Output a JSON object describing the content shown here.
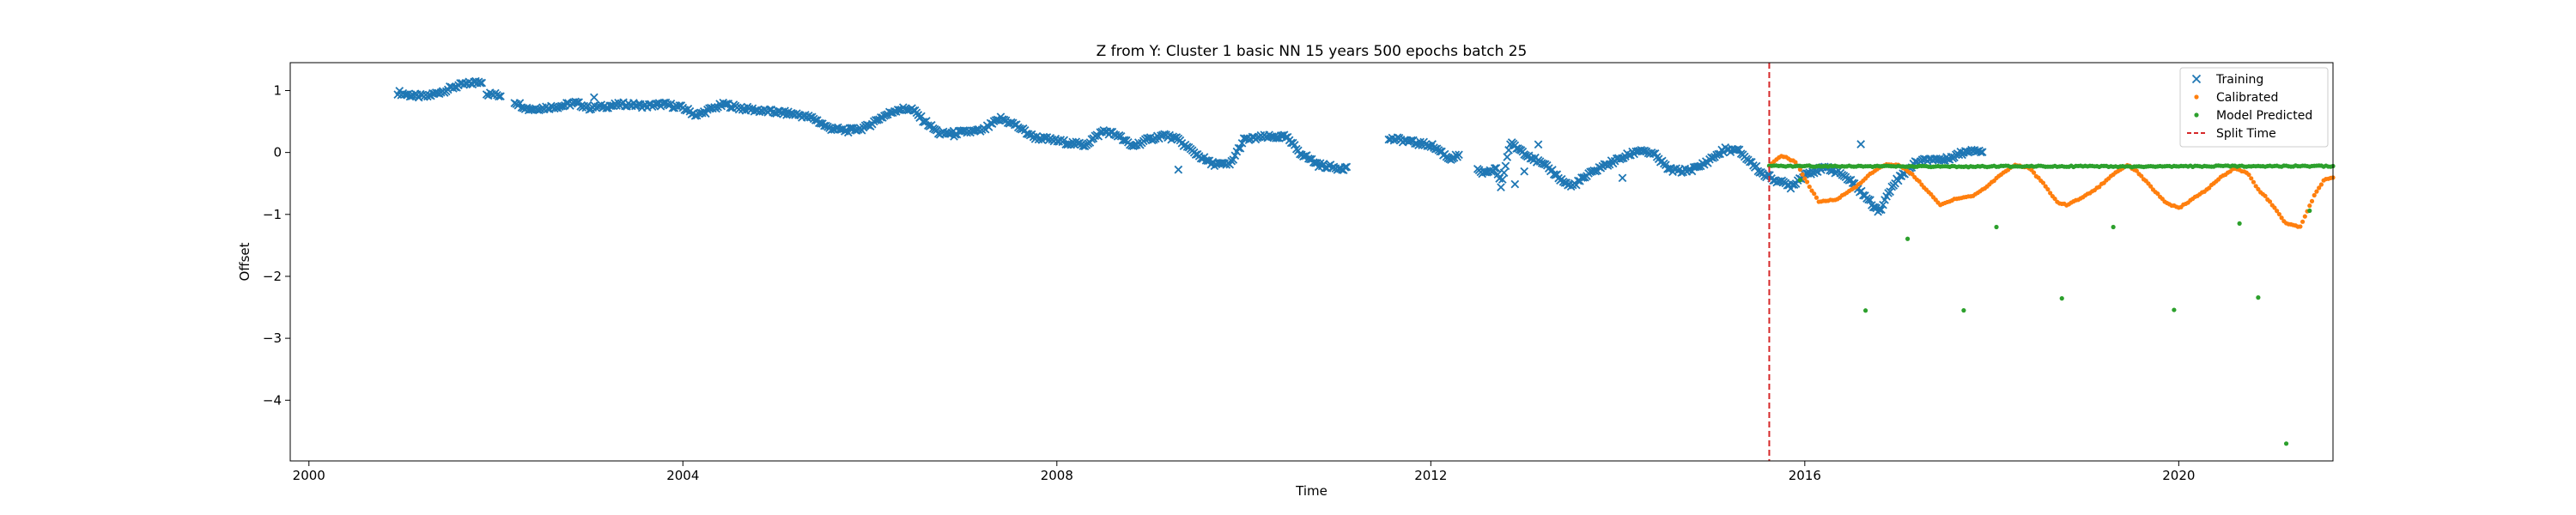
{
  "chart_data": {
    "type": "scatter",
    "title": "Z from Y: Cluster 1 basic NN 15 years 500 epochs batch 25",
    "xlabel": "Time",
    "ylabel": "Offset",
    "xlim": [
      1999.8,
      2021.65
    ],
    "ylim": [
      -4.98,
      1.45
    ],
    "xticks": [
      2000,
      2004,
      2008,
      2012,
      2016,
      2020
    ],
    "yticks": [
      1,
      0,
      -1,
      -2,
      -3,
      -4
    ],
    "ytick_labels": [
      "1",
      "0",
      "−1",
      "−2",
      "−3",
      "−4"
    ],
    "grid": false,
    "legend_position": "top-right",
    "colors": {
      "training": "#1f77b4",
      "calibrated": "#ff7f0e",
      "model_predicted": "#2ca02c",
      "split": "#d62728"
    },
    "split_time": 2015.62,
    "series": [
      {
        "name": "Training",
        "marker": "x",
        "segments": [
          [
            [
              2000.95,
              0.97
            ],
            [
              2001.1,
              0.92
            ],
            [
              2001.25,
              0.9
            ],
            [
              2001.45,
              1.0
            ],
            [
              2001.6,
              1.08
            ],
            [
              2001.75,
              1.12
            ],
            [
              2001.85,
              1.15
            ]
          ],
          [
            [
              2001.9,
              0.95
            ],
            [
              2002.05,
              0.92
            ]
          ],
          [
            [
              2002.2,
              0.82
            ],
            [
              2002.35,
              0.7
            ],
            [
              2002.5,
              0.72
            ],
            [
              2002.7,
              0.75
            ],
            [
              2002.85,
              0.8
            ],
            [
              2003.0,
              0.72
            ],
            [
              2003.2,
              0.75
            ],
            [
              2003.4,
              0.78
            ],
            [
              2003.6,
              0.75
            ],
            [
              2003.8,
              0.78
            ],
            [
              2004.0,
              0.72
            ],
            [
              2004.15,
              0.6
            ],
            [
              2004.3,
              0.7
            ],
            [
              2004.45,
              0.78
            ],
            [
              2004.6,
              0.72
            ],
            [
              2004.8,
              0.68
            ],
            [
              2005.0,
              0.65
            ],
            [
              2005.2,
              0.62
            ],
            [
              2005.4,
              0.55
            ],
            [
              2005.55,
              0.4
            ],
            [
              2005.75,
              0.35
            ],
            [
              2005.95,
              0.4
            ],
            [
              2006.1,
              0.55
            ],
            [
              2006.3,
              0.7
            ],
            [
              2006.45,
              0.7
            ],
            [
              2006.55,
              0.55
            ],
            [
              2006.75,
              0.3
            ],
            [
              2006.95,
              0.32
            ],
            [
              2007.2,
              0.35
            ],
            [
              2007.4,
              0.55
            ],
            [
              2007.55,
              0.45
            ],
            [
              2007.75,
              0.25
            ],
            [
              2007.95,
              0.2
            ],
            [
              2008.15,
              0.15
            ],
            [
              2008.3,
              0.12
            ],
            [
              2008.5,
              0.35
            ],
            [
              2008.65,
              0.28
            ],
            [
              2008.8,
              0.1
            ],
            [
              2009.0,
              0.22
            ],
            [
              2009.15,
              0.28
            ],
            [
              2009.3,
              0.2
            ],
            [
              2009.45,
              0.02
            ],
            [
              2009.65,
              -0.18
            ],
            [
              2009.85,
              -0.2
            ],
            [
              2010.0,
              0.2
            ],
            [
              2010.2,
              0.25
            ],
            [
              2010.45,
              0.25
            ],
            [
              2010.6,
              0.0
            ],
            [
              2010.8,
              -0.2
            ],
            [
              2011.0,
              -0.25
            ],
            [
              2011.1,
              -0.25
            ]
          ],
          [
            [
              2011.55,
              0.22
            ],
            [
              2011.7,
              0.2
            ],
            [
              2011.85,
              0.15
            ],
            [
              2012.0,
              0.12
            ],
            [
              2012.1,
              0.02
            ],
            [
              2012.2,
              -0.1
            ],
            [
              2012.3,
              -0.05
            ]
          ],
          [
            [
              2012.5,
              -0.3
            ],
            [
              2012.6,
              -0.35
            ],
            [
              2012.7,
              -0.25
            ],
            [
              2012.75,
              -0.55
            ],
            [
              2012.85,
              0.15
            ],
            [
              2012.95,
              0.05
            ],
            [
              2013.05,
              -0.05
            ],
            [
              2013.15,
              -0.15
            ],
            [
              2013.3,
              -0.3
            ],
            [
              2013.4,
              -0.45
            ],
            [
              2013.5,
              -0.55
            ],
            [
              2013.65,
              -0.4
            ],
            [
              2013.8,
              -0.25
            ],
            [
              2013.95,
              -0.15
            ],
            [
              2014.1,
              -0.05
            ],
            [
              2014.25,
              0.05
            ],
            [
              2014.4,
              -0.05
            ],
            [
              2014.55,
              -0.28
            ],
            [
              2014.7,
              -0.3
            ],
            [
              2014.85,
              -0.25
            ],
            [
              2015.0,
              -0.1
            ],
            [
              2015.15,
              0.05
            ],
            [
              2015.3,
              0.02
            ],
            [
              2015.45,
              -0.2
            ],
            [
              2015.55,
              -0.35
            ],
            [
              2015.7,
              -0.45
            ],
            [
              2015.85,
              -0.55
            ],
            [
              2016.0,
              -0.35
            ],
            [
              2016.1,
              -0.3
            ],
            [
              2016.25,
              -0.25
            ],
            [
              2016.4,
              -0.35
            ],
            [
              2016.55,
              -0.55
            ],
            [
              2016.7,
              -0.8
            ],
            [
              2016.8,
              -0.95
            ],
            [
              2016.95,
              -0.5
            ],
            [
              2017.05,
              -0.35
            ],
            [
              2017.2,
              -0.15
            ],
            [
              2017.35,
              -0.1
            ],
            [
              2017.5,
              -0.12
            ],
            [
              2017.6,
              -0.05
            ],
            [
              2017.7,
              0.0
            ],
            [
              2017.8,
              0.05
            ],
            [
              2017.9,
              0.02
            ]
          ]
        ],
        "outliers": [
          [
            2003.05,
            0.9
          ],
          [
            2006.9,
            0.25
          ],
          [
            2009.3,
            -0.28
          ],
          [
            2012.9,
            -0.5
          ],
          [
            2013.0,
            -0.3
          ],
          [
            2013.15,
            0.1
          ],
          [
            2014.05,
            -0.4
          ],
          [
            2016.6,
            0.15
          ]
        ]
      },
      {
        "name": "Calibrated",
        "marker": "dot",
        "segments": [
          [
            [
              2015.62,
              -0.22
            ],
            [
              2015.75,
              -0.05
            ],
            [
              2015.9,
              -0.15
            ],
            [
              2016.05,
              -0.55
            ],
            [
              2016.15,
              -0.8
            ],
            [
              2016.35,
              -0.75
            ],
            [
              2016.55,
              -0.55
            ],
            [
              2016.7,
              -0.35
            ],
            [
              2016.85,
              -0.2
            ],
            [
              2017.0,
              -0.2
            ],
            [
              2017.15,
              -0.35
            ],
            [
              2017.3,
              -0.6
            ],
            [
              2017.45,
              -0.85
            ],
            [
              2017.6,
              -0.75
            ],
            [
              2017.8,
              -0.7
            ],
            [
              2017.95,
              -0.55
            ],
            [
              2018.1,
              -0.35
            ],
            [
              2018.25,
              -0.2
            ],
            [
              2018.4,
              -0.25
            ],
            [
              2018.55,
              -0.5
            ],
            [
              2018.7,
              -0.8
            ],
            [
              2018.8,
              -0.85
            ],
            [
              2019.0,
              -0.7
            ],
            [
              2019.15,
              -0.55
            ],
            [
              2019.3,
              -0.35
            ],
            [
              2019.45,
              -0.2
            ],
            [
              2019.55,
              -0.3
            ],
            [
              2019.7,
              -0.55
            ],
            [
              2019.85,
              -0.8
            ],
            [
              2020.0,
              -0.9
            ],
            [
              2020.15,
              -0.75
            ],
            [
              2020.3,
              -0.6
            ],
            [
              2020.45,
              -0.4
            ],
            [
              2020.6,
              -0.25
            ],
            [
              2020.75,
              -0.35
            ],
            [
              2020.85,
              -0.6
            ],
            [
              2020.95,
              -0.75
            ],
            [
              2021.05,
              -0.95
            ],
            [
              2021.15,
              -1.15
            ],
            [
              2021.3,
              -1.2
            ],
            [
              2021.45,
              -0.7
            ],
            [
              2021.55,
              -0.45
            ],
            [
              2021.65,
              -0.4
            ]
          ]
        ],
        "outliers": []
      },
      {
        "name": "Model Predicted",
        "marker": "dot",
        "segments": [
          [
            [
              2015.62,
              -0.22
            ],
            [
              2016.5,
              -0.22
            ],
            [
              2017.5,
              -0.23
            ],
            [
              2018.5,
              -0.22
            ],
            [
              2019.5,
              -0.23
            ],
            [
              2020.5,
              -0.22
            ],
            [
              2021.65,
              -0.22
            ]
          ]
        ],
        "outliers": [
          [
            2015.95,
            -0.45
          ],
          [
            2016.65,
            -2.55
          ],
          [
            2017.1,
            -1.4
          ],
          [
            2017.7,
            -2.55
          ],
          [
            2018.05,
            -1.2
          ],
          [
            2018.75,
            -2.35
          ],
          [
            2019.3,
            -1.2
          ],
          [
            2019.95,
            -2.55
          ],
          [
            2020.65,
            -1.15
          ],
          [
            2020.85,
            -2.35
          ],
          [
            2021.15,
            -4.7
          ],
          [
            2021.4,
            -0.95
          ]
        ]
      }
    ],
    "split_label": "Split Time"
  }
}
